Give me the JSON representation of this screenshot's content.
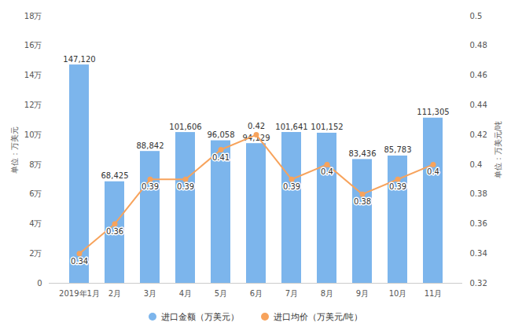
{
  "chart_data": {
    "type": "bar",
    "categories": [
      "2019年1月",
      "2月",
      "3月",
      "4月",
      "5月",
      "6月",
      "7月",
      "8月",
      "9月",
      "10月",
      "11月"
    ],
    "y_label": "单位：万美元",
    "y2_label": "单位：万美元/吨",
    "ylim": [
      0,
      180000
    ],
    "yticks": [
      0,
      {
        "value": 20000,
        "label": "2万"
      },
      {
        "value": 40000,
        "label": "4万"
      },
      {
        "value": 60000,
        "label": "6万"
      },
      {
        "value": 80000,
        "label": "8万"
      },
      {
        "value": 100000,
        "label": "10万"
      },
      {
        "value": 120000,
        "label": "12万"
      },
      {
        "value": 140000,
        "label": "14万"
      },
      {
        "value": 160000,
        "label": "16万"
      },
      {
        "value": 180000,
        "label": "18万"
      }
    ],
    "y2lim": [
      0.32,
      0.5
    ],
    "y2ticks": [
      0.32,
      0.34,
      0.36,
      0.38,
      0.4,
      0.42,
      0.44,
      0.46,
      0.48,
      0.5
    ],
    "grid": false,
    "legend": "bottom",
    "data_labels": true,
    "series": [
      {
        "name": "进口金额（万美元）",
        "type": "bar",
        "color": "#7cb5ec",
        "values": [
          147120,
          68425,
          88842,
          101606,
          96058,
          94129,
          101641,
          101152,
          83436,
          85783,
          111305
        ],
        "value_labels": [
          "147,120",
          "68,425",
          "88,842",
          "101,606",
          "96,058",
          "94,129",
          "101,641",
          "101,152",
          "83,436",
          "85,783",
          "111,305"
        ]
      },
      {
        "name": "进口均价（万美元/吨）",
        "type": "line",
        "axis": "y2",
        "color": "#f7a35c",
        "marker": "circle",
        "values": [
          0.34,
          0.36,
          0.39,
          0.39,
          0.41,
          0.42,
          0.39,
          0.4,
          0.38,
          0.39,
          0.4
        ]
      }
    ]
  }
}
